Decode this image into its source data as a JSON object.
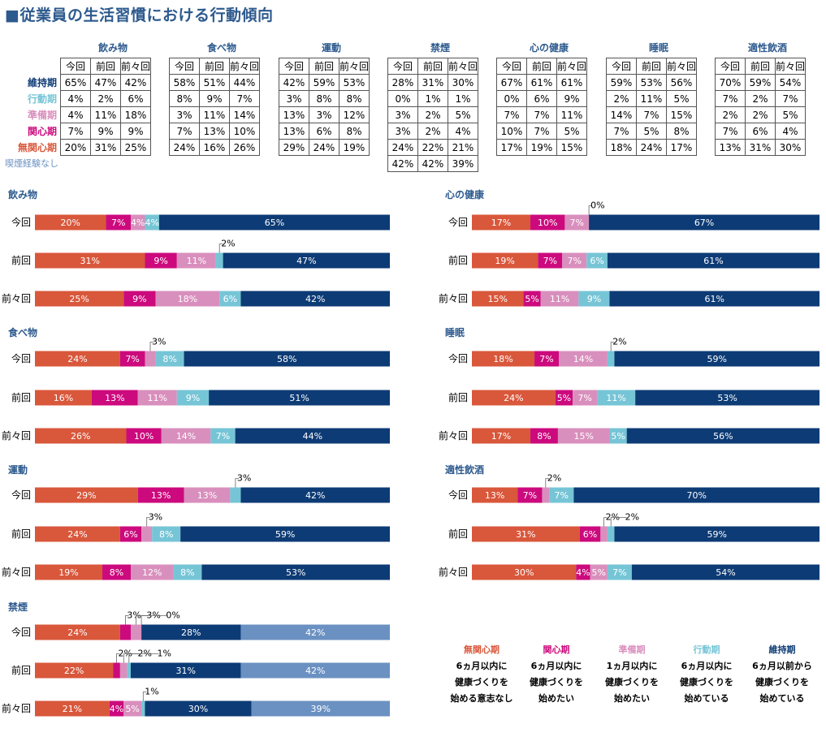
{
  "title": "■従業員の生活習慣における行動傾向",
  "stage_labels": [
    "維持期",
    "行動期",
    "準備期",
    "関心期",
    "無関心期",
    "喫煙経験なし"
  ],
  "stage_colors": {
    "無関心期": "#d9573b",
    "関心期": "#cc0a7d",
    "準備期": "#d98fbd",
    "行動期": "#76c5d6",
    "維持期": "#0d3b75",
    "喫煙経験なし": "#6b91c2"
  },
  "column_labels": [
    "今回",
    "前回",
    "前々回"
  ],
  "summary": [
    {
      "name": "飲み物",
      "rows": [
        [
          "65%",
          "47%",
          "42%"
        ],
        [
          "4%",
          "2%",
          "6%"
        ],
        [
          "4%",
          "11%",
          "18%"
        ],
        [
          "7%",
          "9%",
          "9%"
        ],
        [
          "20%",
          "31%",
          "25%"
        ]
      ]
    },
    {
      "name": "食べ物",
      "rows": [
        [
          "58%",
          "51%",
          "44%"
        ],
        [
          "8%",
          "9%",
          "7%"
        ],
        [
          "3%",
          "11%",
          "14%"
        ],
        [
          "7%",
          "13%",
          "10%"
        ],
        [
          "24%",
          "16%",
          "26%"
        ]
      ]
    },
    {
      "name": "運動",
      "rows": [
        [
          "42%",
          "59%",
          "53%"
        ],
        [
          "3%",
          "8%",
          "8%"
        ],
        [
          "13%",
          "3%",
          "12%"
        ],
        [
          "13%",
          "6%",
          "8%"
        ],
        [
          "29%",
          "24%",
          "19%"
        ]
      ]
    },
    {
      "name": "禁煙",
      "rows": [
        [
          "28%",
          "31%",
          "30%"
        ],
        [
          "0%",
          "1%",
          "1%"
        ],
        [
          "3%",
          "2%",
          "5%"
        ],
        [
          "3%",
          "2%",
          "4%"
        ],
        [
          "24%",
          "22%",
          "21%"
        ],
        [
          "42%",
          "42%",
          "39%"
        ]
      ]
    },
    {
      "name": "心の健康",
      "rows": [
        [
          "67%",
          "61%",
          "61%"
        ],
        [
          "0%",
          "6%",
          "9%"
        ],
        [
          "7%",
          "7%",
          "11%"
        ],
        [
          "10%",
          "7%",
          "5%"
        ],
        [
          "17%",
          "19%",
          "15%"
        ]
      ]
    },
    {
      "name": "睡眠",
      "rows": [
        [
          "59%",
          "53%",
          "56%"
        ],
        [
          "2%",
          "11%",
          "5%"
        ],
        [
          "14%",
          "7%",
          "15%"
        ],
        [
          "7%",
          "5%",
          "8%"
        ],
        [
          "18%",
          "24%",
          "17%"
        ]
      ]
    },
    {
      "name": "適性飲酒",
      "rows": [
        [
          "70%",
          "59%",
          "54%"
        ],
        [
          "7%",
          "2%",
          "7%"
        ],
        [
          "2%",
          "2%",
          "5%"
        ],
        [
          "7%",
          "6%",
          "4%"
        ],
        [
          "13%",
          "31%",
          "30%"
        ]
      ]
    }
  ],
  "chart_data": [
    {
      "type": "bar",
      "title": "飲み物",
      "categories": [
        "今回",
        "前回",
        "前々回"
      ],
      "series": [
        {
          "name": "無関心期",
          "values": [
            20,
            31,
            25
          ]
        },
        {
          "name": "関心期",
          "values": [
            7,
            9,
            9
          ]
        },
        {
          "name": "準備期",
          "values": [
            4,
            11,
            18
          ]
        },
        {
          "name": "行動期",
          "values": [
            4,
            2,
            6
          ]
        },
        {
          "name": "維持期",
          "values": [
            65,
            47,
            42
          ]
        }
      ]
    },
    {
      "type": "bar",
      "title": "食べ物",
      "categories": [
        "今回",
        "前回",
        "前々回"
      ],
      "series": [
        {
          "name": "無関心期",
          "values": [
            24,
            16,
            26
          ]
        },
        {
          "name": "関心期",
          "values": [
            7,
            13,
            10
          ]
        },
        {
          "name": "準備期",
          "values": [
            3,
            11,
            14
          ]
        },
        {
          "name": "行動期",
          "values": [
            8,
            9,
            7
          ]
        },
        {
          "name": "維持期",
          "values": [
            58,
            51,
            44
          ]
        }
      ]
    },
    {
      "type": "bar",
      "title": "運動",
      "categories": [
        "今回",
        "前回",
        "前々回"
      ],
      "series": [
        {
          "name": "無関心期",
          "values": [
            29,
            24,
            19
          ]
        },
        {
          "name": "関心期",
          "values": [
            13,
            6,
            8
          ]
        },
        {
          "name": "準備期",
          "values": [
            13,
            3,
            12
          ]
        },
        {
          "name": "行動期",
          "values": [
            3,
            8,
            8
          ]
        },
        {
          "name": "維持期",
          "values": [
            42,
            59,
            53
          ]
        }
      ]
    },
    {
      "type": "bar",
      "title": "禁煙",
      "categories": [
        "今回",
        "前回",
        "前々回"
      ],
      "series": [
        {
          "name": "無関心期",
          "values": [
            24,
            22,
            21
          ]
        },
        {
          "name": "関心期",
          "values": [
            3,
            2,
            4
          ]
        },
        {
          "name": "準備期",
          "values": [
            3,
            2,
            5
          ]
        },
        {
          "name": "行動期",
          "values": [
            0,
            1,
            1
          ]
        },
        {
          "name": "維持期",
          "values": [
            28,
            31,
            30
          ]
        },
        {
          "name": "喫煙経験なし",
          "values": [
            42,
            42,
            39
          ]
        }
      ]
    },
    {
      "type": "bar",
      "title": "心の健康",
      "categories": [
        "今回",
        "前回",
        "前々回"
      ],
      "series": [
        {
          "name": "無関心期",
          "values": [
            17,
            19,
            15
          ]
        },
        {
          "name": "関心期",
          "values": [
            10,
            7,
            5
          ]
        },
        {
          "name": "準備期",
          "values": [
            7,
            7,
            11
          ]
        },
        {
          "name": "行動期",
          "values": [
            0,
            6,
            9
          ]
        },
        {
          "name": "維持期",
          "values": [
            67,
            61,
            61
          ]
        }
      ]
    },
    {
      "type": "bar",
      "title": "睡眠",
      "categories": [
        "今回",
        "前回",
        "前々回"
      ],
      "series": [
        {
          "name": "無関心期",
          "values": [
            18,
            24,
            17
          ]
        },
        {
          "name": "関心期",
          "values": [
            7,
            5,
            8
          ]
        },
        {
          "name": "準備期",
          "values": [
            14,
            7,
            15
          ]
        },
        {
          "name": "行動期",
          "values": [
            2,
            11,
            5
          ]
        },
        {
          "name": "維持期",
          "values": [
            59,
            53,
            56
          ]
        }
      ]
    },
    {
      "type": "bar",
      "title": "適性飲酒",
      "categories": [
        "今回",
        "前回",
        "前々回"
      ],
      "series": [
        {
          "name": "無関心期",
          "values": [
            13,
            31,
            30
          ]
        },
        {
          "name": "関心期",
          "values": [
            7,
            6,
            4
          ]
        },
        {
          "name": "準備期",
          "values": [
            2,
            2,
            5
          ]
        },
        {
          "name": "行動期",
          "values": [
            7,
            2,
            7
          ]
        },
        {
          "name": "維持期",
          "values": [
            70,
            59,
            54
          ]
        }
      ]
    }
  ],
  "legend": [
    {
      "name": "無関心期",
      "lines": [
        "6ヵ月以内に",
        "健康づくりを",
        "始める意志なし"
      ]
    },
    {
      "name": "関心期",
      "lines": [
        "6ヵ月以内に",
        "健康づくりを",
        "始めたい"
      ]
    },
    {
      "name": "準備期",
      "lines": [
        "1ヵ月以内に",
        "健康づくりを",
        "始めたい"
      ]
    },
    {
      "name": "行動期",
      "lines": [
        "6ヵ月以内に",
        "健康づくりを",
        "始めている"
      ]
    },
    {
      "name": "維持期",
      "lines": [
        "6ヵ月以前から",
        "健康づくりを",
        "始めている"
      ]
    }
  ]
}
